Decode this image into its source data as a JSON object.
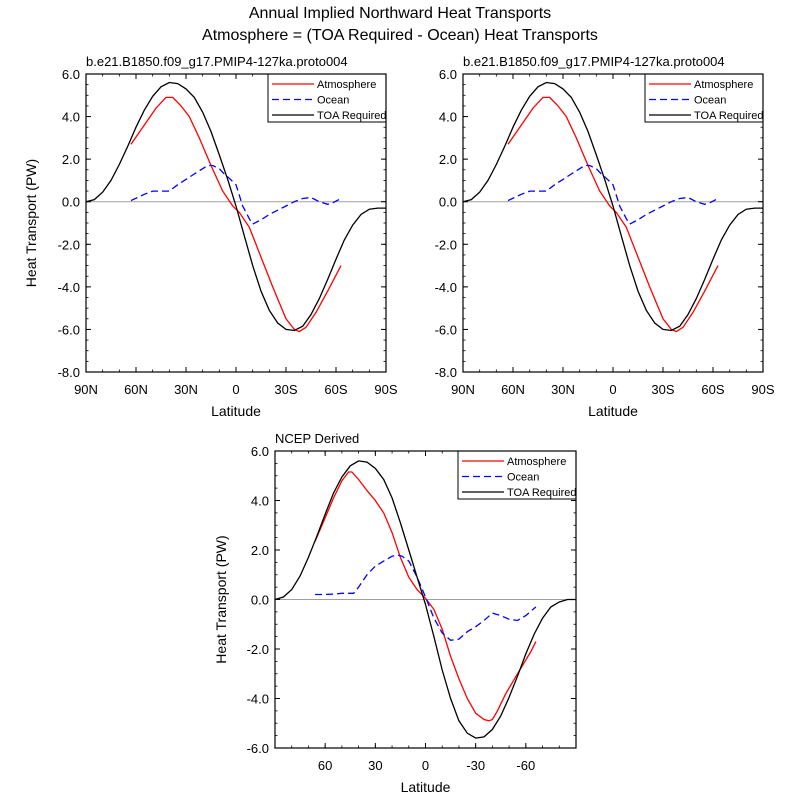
{
  "figure": {
    "title_line1": "Annual Implied Northward Heat Transports",
    "title_line2": "Atmosphere = (TOA Required - Ocean) Heat Transports"
  },
  "colors": {
    "atmosphere": "#ff0000",
    "ocean": "#0000ff",
    "toa": "#000000",
    "zero_line": "#a0a0a0"
  },
  "chart_data": [
    {
      "type": "line",
      "title": "b.e21.B1850.f09_g17.PMIP4-127ka.proto004",
      "xlabel": "Latitude",
      "ylabel": "Heat Transport (PW)",
      "xlim": [
        90,
        -90
      ],
      "ylim": [
        -8,
        6
      ],
      "xticks": [
        90,
        60,
        30,
        0,
        -30,
        -60,
        -90
      ],
      "xtick_labels": [
        "90N",
        "60N",
        "30N",
        "0",
        "30S",
        "60S",
        "90S"
      ],
      "yticks": [
        6,
        4,
        2,
        0,
        -2,
        -4,
        -6,
        -8
      ],
      "ytick_labels": [
        "6.0",
        "4.0",
        "2.0",
        "0.0",
        "-2.0",
        "-4.0",
        "-6.0",
        "-8.0"
      ],
      "legend": "top-right",
      "series": [
        {
          "name": "Atmosphere",
          "color": "#ff0000",
          "dash": "solid",
          "x": [
            63,
            55,
            48,
            42,
            38,
            33,
            28,
            22,
            15,
            8,
            2,
            -2,
            -8,
            -15,
            -22,
            -30,
            -35,
            -38,
            -42,
            -48,
            -55,
            -63
          ],
          "y": [
            2.7,
            3.6,
            4.4,
            4.9,
            4.9,
            4.5,
            4.0,
            3.0,
            1.7,
            0.5,
            -0.2,
            -0.5,
            -1.2,
            -2.6,
            -4.0,
            -5.5,
            -6.0,
            -6.1,
            -5.9,
            -5.2,
            -4.2,
            -3.0
          ]
        },
        {
          "name": "Ocean",
          "color": "#0000ff",
          "dash": "dashed",
          "x": [
            63,
            55,
            50,
            45,
            40,
            35,
            30,
            25,
            20,
            17,
            14,
            10,
            7,
            4,
            0,
            -4,
            -8,
            -10,
            -15,
            -20,
            -25,
            -30,
            -35,
            -40,
            -45,
            -50,
            -55,
            -58,
            -63
          ],
          "y": [
            0.05,
            0.35,
            0.5,
            0.5,
            0.5,
            0.8,
            1.05,
            1.3,
            1.55,
            1.7,
            1.7,
            1.55,
            1.3,
            1.1,
            0.8,
            -0.2,
            -0.8,
            -1.05,
            -0.85,
            -0.6,
            -0.4,
            -0.2,
            0.0,
            0.15,
            0.2,
            0.0,
            -0.12,
            -0.05,
            0.15
          ]
        },
        {
          "name": "TOA Required",
          "color": "#000000",
          "dash": "solid",
          "x": [
            90,
            85,
            80,
            75,
            70,
            65,
            60,
            55,
            50,
            45,
            40,
            35,
            30,
            25,
            20,
            15,
            10,
            5,
            0,
            -5,
            -10,
            -15,
            -20,
            -25,
            -30,
            -35,
            -40,
            -45,
            -50,
            -55,
            -60,
            -65,
            -70,
            -75,
            -80,
            -85,
            -90
          ],
          "y": [
            0.0,
            0.1,
            0.45,
            1.0,
            1.75,
            2.6,
            3.5,
            4.3,
            4.95,
            5.4,
            5.6,
            5.55,
            5.3,
            4.9,
            4.2,
            3.3,
            2.2,
            1.05,
            -0.2,
            -1.6,
            -3.0,
            -4.2,
            -5.1,
            -5.7,
            -6.0,
            -6.05,
            -5.85,
            -5.3,
            -4.55,
            -3.65,
            -2.7,
            -1.8,
            -1.1,
            -0.6,
            -0.35,
            -0.3,
            -0.3
          ]
        }
      ]
    },
    {
      "type": "line",
      "title": "b.e21.B1850.f09_g17.PMIP4-127ka.proto004",
      "xlabel": "Latitude",
      "ylabel": "",
      "xlim": [
        90,
        -90
      ],
      "ylim": [
        -8,
        6
      ],
      "xticks": [
        90,
        60,
        30,
        0,
        -30,
        -60,
        -90
      ],
      "xtick_labels": [
        "90N",
        "60N",
        "30N",
        "0",
        "30S",
        "60S",
        "90S"
      ],
      "yticks": [
        6,
        4,
        2,
        0,
        -2,
        -4,
        -6,
        -8
      ],
      "ytick_labels": [
        "6.0",
        "4.0",
        "2.0",
        "0.0",
        "-2.0",
        "-4.0",
        "-6.0",
        "-8.0"
      ],
      "legend": "top-right",
      "series": [
        {
          "name": "Atmosphere",
          "color": "#ff0000",
          "dash": "solid",
          "x": [
            63,
            55,
            48,
            42,
            38,
            33,
            28,
            22,
            15,
            8,
            2,
            -2,
            -8,
            -15,
            -22,
            -30,
            -35,
            -38,
            -42,
            -48,
            -55,
            -63
          ],
          "y": [
            2.7,
            3.6,
            4.4,
            4.9,
            4.9,
            4.5,
            4.0,
            3.0,
            1.7,
            0.5,
            -0.2,
            -0.5,
            -1.2,
            -2.6,
            -4.0,
            -5.5,
            -6.0,
            -6.1,
            -5.9,
            -5.2,
            -4.2,
            -3.0
          ]
        },
        {
          "name": "Ocean",
          "color": "#0000ff",
          "dash": "dashed",
          "x": [
            63,
            55,
            50,
            45,
            40,
            35,
            30,
            25,
            20,
            17,
            14,
            10,
            7,
            4,
            0,
            -4,
            -8,
            -10,
            -15,
            -20,
            -25,
            -30,
            -35,
            -40,
            -45,
            -50,
            -55,
            -58,
            -63
          ],
          "y": [
            0.05,
            0.35,
            0.5,
            0.5,
            0.5,
            0.8,
            1.05,
            1.3,
            1.55,
            1.7,
            1.7,
            1.55,
            1.3,
            1.1,
            0.8,
            -0.2,
            -0.8,
            -1.05,
            -0.85,
            -0.6,
            -0.4,
            -0.2,
            0.0,
            0.15,
            0.2,
            0.0,
            -0.12,
            -0.05,
            0.15
          ]
        },
        {
          "name": "TOA Required",
          "color": "#000000",
          "dash": "solid",
          "x": [
            90,
            85,
            80,
            75,
            70,
            65,
            60,
            55,
            50,
            45,
            40,
            35,
            30,
            25,
            20,
            15,
            10,
            5,
            0,
            -5,
            -10,
            -15,
            -20,
            -25,
            -30,
            -35,
            -40,
            -45,
            -50,
            -55,
            -60,
            -65,
            -70,
            -75,
            -80,
            -85,
            -90
          ],
          "y": [
            0.0,
            0.1,
            0.45,
            1.0,
            1.75,
            2.6,
            3.5,
            4.3,
            4.95,
            5.4,
            5.6,
            5.55,
            5.3,
            4.9,
            4.2,
            3.3,
            2.2,
            1.05,
            -0.2,
            -1.6,
            -3.0,
            -4.2,
            -5.1,
            -5.7,
            -6.0,
            -6.05,
            -5.85,
            -5.3,
            -4.55,
            -3.65,
            -2.7,
            -1.8,
            -1.1,
            -0.6,
            -0.35,
            -0.3,
            -0.3
          ]
        }
      ]
    },
    {
      "type": "line",
      "title": "NCEP Derived",
      "xlabel": "Latitude",
      "ylabel": "Heat Transport (PW)",
      "xlim": [
        90,
        -90
      ],
      "ylim": [
        -6,
        6
      ],
      "xticks": [
        60,
        30,
        0,
        -30,
        -60
      ],
      "xtick_labels": [
        "60",
        "30",
        "0",
        "-30",
        "-60"
      ],
      "yticks": [
        6,
        4,
        2,
        0,
        -2,
        -4,
        -6
      ],
      "ytick_labels": [
        "6.0",
        "4.0",
        "2.0",
        "0.0",
        "-2.0",
        "-4.0",
        "-6.0"
      ],
      "legend": "top-right",
      "series": [
        {
          "name": "Atmosphere",
          "color": "#ff0000",
          "dash": "solid",
          "x": [
            66,
            60,
            55,
            50,
            46,
            44,
            40,
            35,
            30,
            25,
            20,
            15,
            10,
            5,
            0,
            -5,
            -10,
            -15,
            -20,
            -25,
            -30,
            -35,
            -38,
            -40,
            -43,
            -48,
            -55,
            -63,
            -66
          ],
          "y": [
            2.35,
            3.3,
            4.1,
            4.8,
            5.15,
            5.15,
            4.85,
            4.4,
            4.0,
            3.5,
            2.7,
            1.7,
            0.9,
            0.4,
            0.05,
            -0.4,
            -1.2,
            -2.3,
            -3.2,
            -4.0,
            -4.6,
            -4.85,
            -4.9,
            -4.85,
            -4.5,
            -3.8,
            -3.0,
            -2.1,
            -1.7
          ]
        },
        {
          "name": "Ocean",
          "color": "#0000ff",
          "dash": "dashed",
          "x": [
            66,
            60,
            55,
            50,
            46,
            43,
            40,
            35,
            30,
            25,
            20,
            17,
            14,
            10,
            5,
            0,
            -5,
            -10,
            -15,
            -20,
            -25,
            -30,
            -35,
            -40,
            -45,
            -50,
            -55,
            -60,
            -66
          ],
          "y": [
            0.2,
            0.2,
            0.22,
            0.25,
            0.25,
            0.25,
            0.5,
            1.0,
            1.35,
            1.55,
            1.75,
            1.8,
            1.75,
            1.55,
            0.9,
            0.1,
            -0.75,
            -1.35,
            -1.65,
            -1.6,
            -1.3,
            -1.1,
            -0.85,
            -0.55,
            -0.65,
            -0.8,
            -0.85,
            -0.65,
            -0.3
          ]
        },
        {
          "name": "TOA Required",
          "color": "#000000",
          "dash": "solid",
          "x": [
            90,
            85,
            80,
            75,
            70,
            65,
            60,
            55,
            50,
            45,
            40,
            35,
            30,
            25,
            20,
            15,
            10,
            5,
            0,
            -5,
            -10,
            -15,
            -20,
            -25,
            -30,
            -35,
            -40,
            -45,
            -50,
            -55,
            -60,
            -65,
            -70,
            -75,
            -80,
            -85,
            -90
          ],
          "y": [
            0.0,
            0.1,
            0.4,
            0.95,
            1.7,
            2.55,
            3.45,
            4.3,
            4.95,
            5.4,
            5.6,
            5.55,
            5.3,
            4.85,
            4.1,
            3.1,
            2.0,
            0.9,
            -0.2,
            -1.5,
            -2.85,
            -4.0,
            -4.9,
            -5.4,
            -5.6,
            -5.55,
            -5.25,
            -4.7,
            -3.95,
            -3.1,
            -2.2,
            -1.4,
            -0.75,
            -0.3,
            -0.1,
            0.0,
            0.0
          ]
        }
      ]
    }
  ]
}
